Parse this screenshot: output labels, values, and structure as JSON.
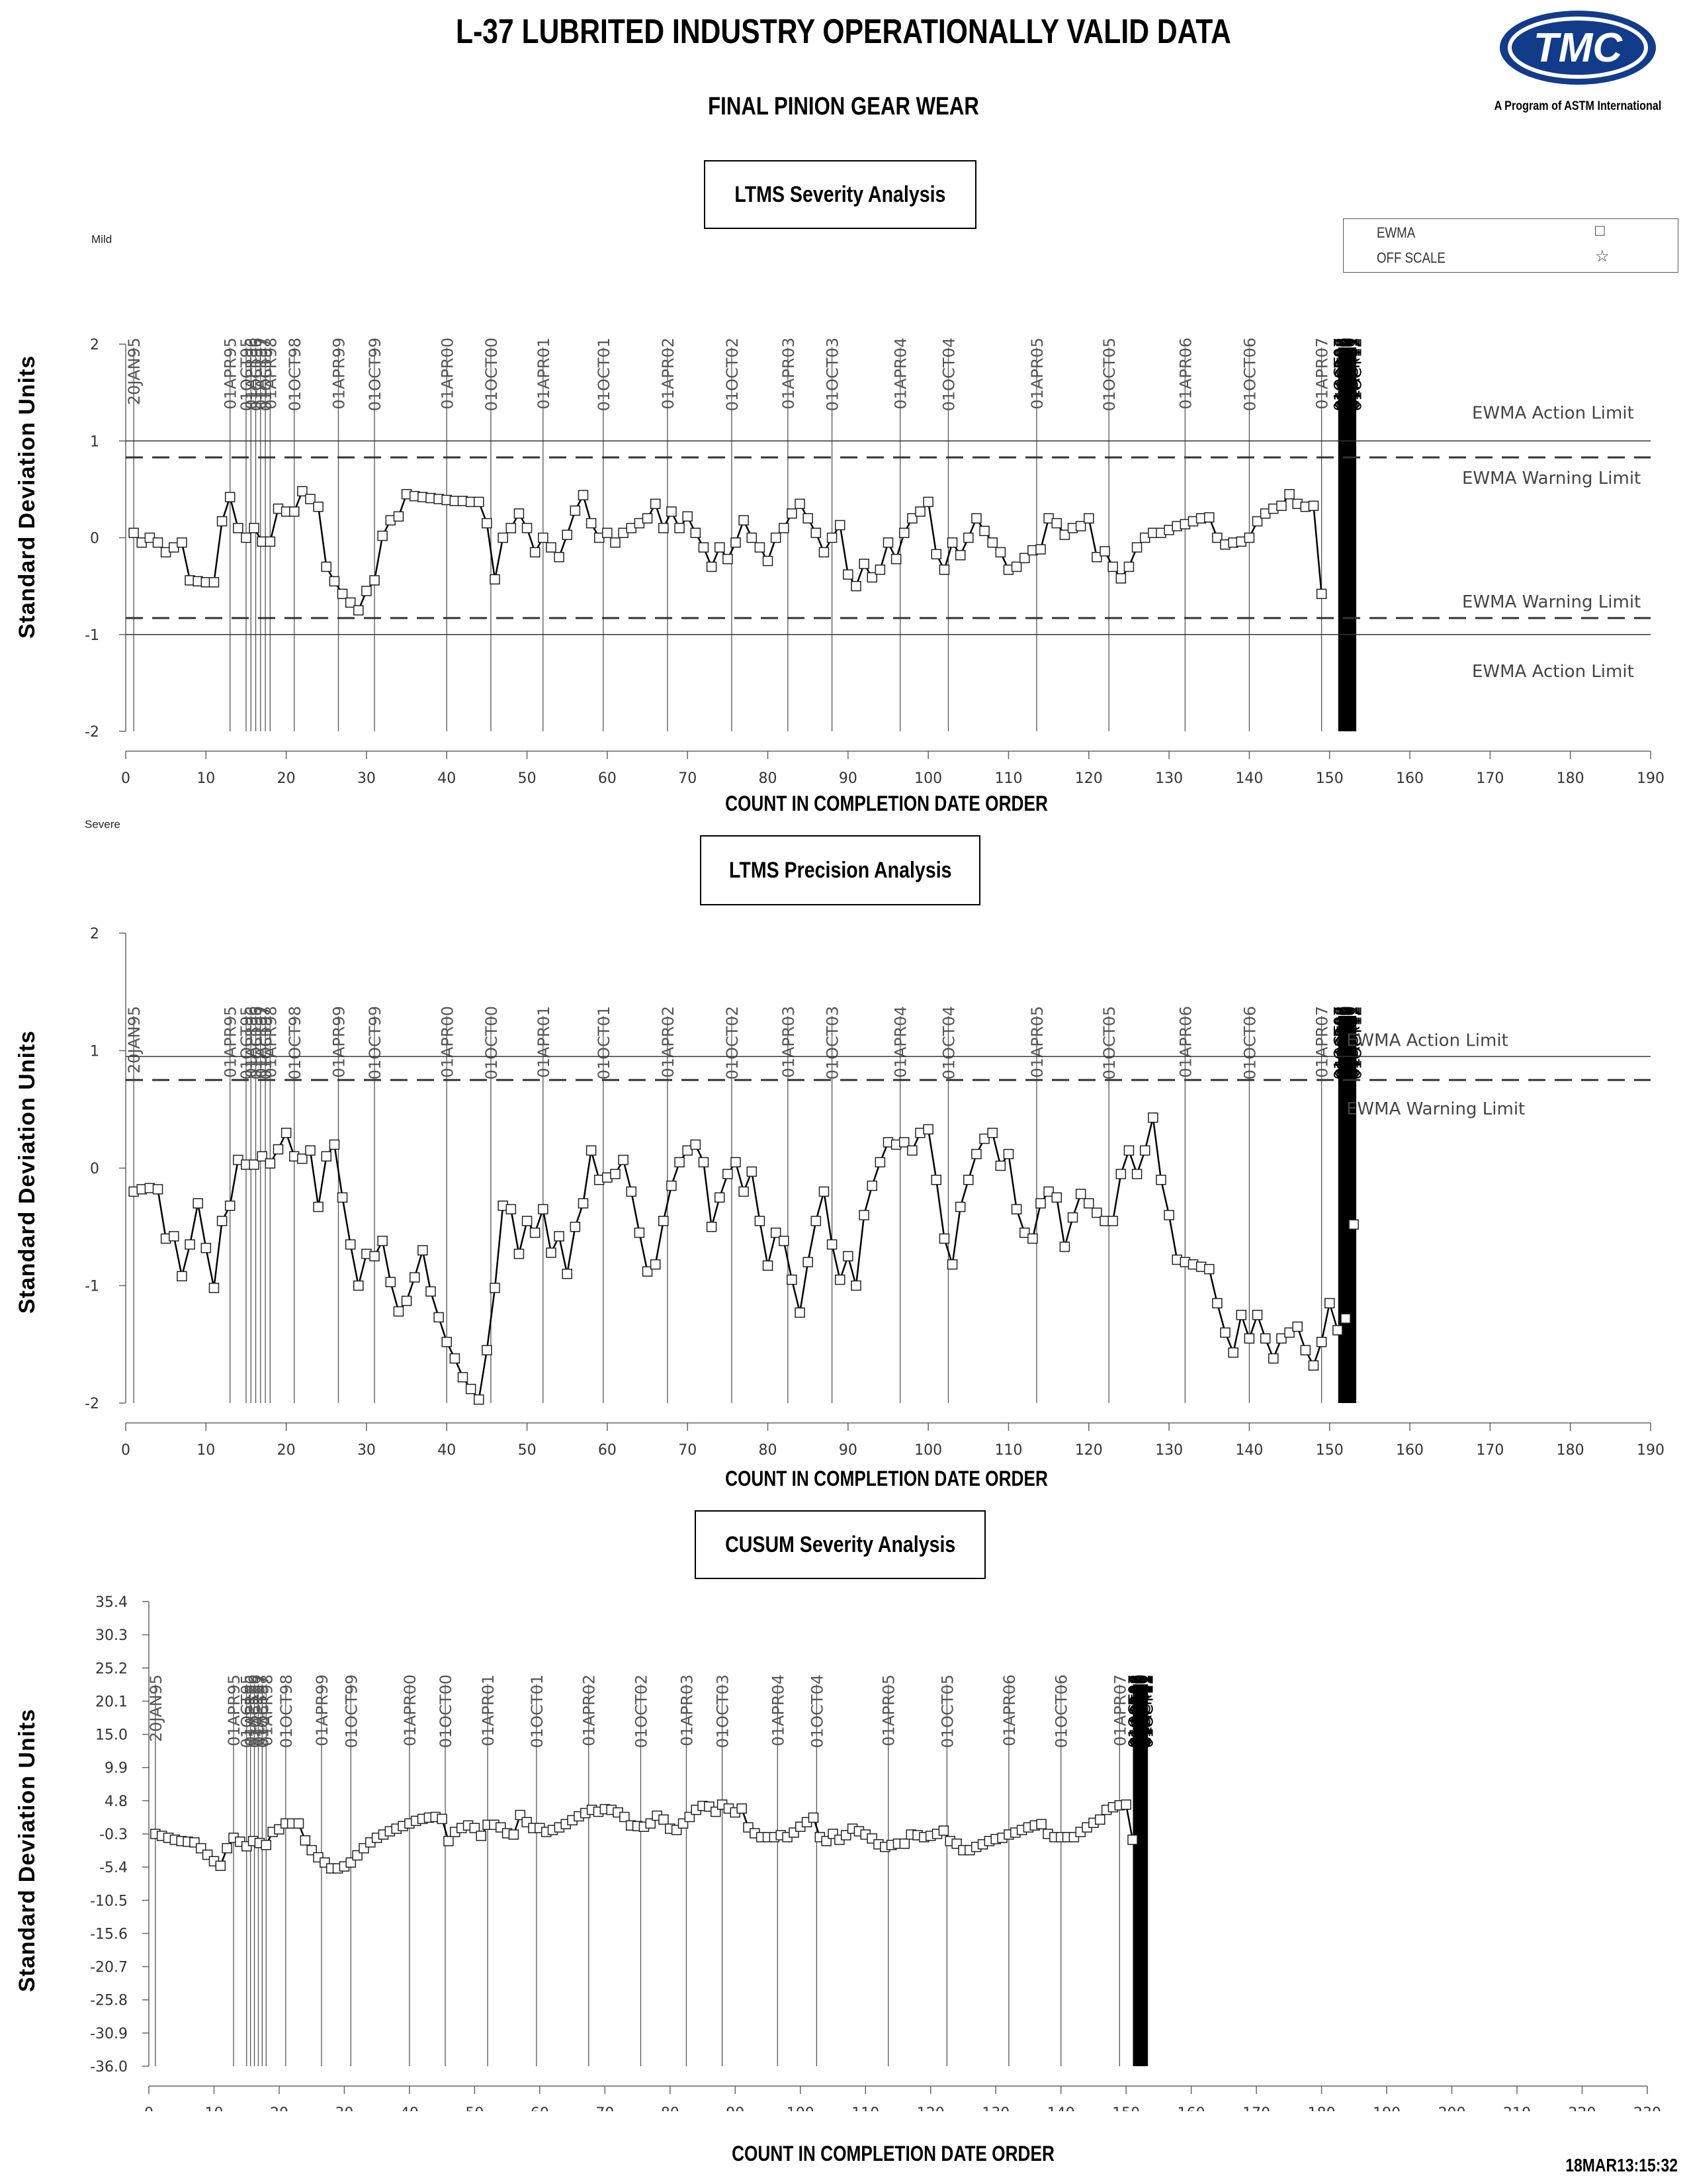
{
  "header": {
    "title": "L-37 LUBRITED INDUSTRY OPERATIONALLY VALID DATA",
    "subtitle": "FINAL PINION GEAR WEAR",
    "logo_text": "TMC",
    "logo_caption": "A Program of ASTM International"
  },
  "legend": {
    "items": [
      {
        "label": "EWMA",
        "symbol": "□"
      },
      {
        "label": "OFF SCALE",
        "symbol": "☆"
      }
    ]
  },
  "footer": {
    "stamp": "18MAR13:15:32"
  },
  "date_markers": {
    "dates": [
      "20JAN95",
      "01APR95",
      "01OCT95",
      "01APR96",
      "01OCT96",
      "01APR97",
      "01OCT97",
      "01APR98",
      "01OCT98",
      "01APR99",
      "01OCT99",
      "01APR00",
      "01OCT00",
      "01APR01",
      "01OCT01",
      "01APR02",
      "01OCT02",
      "01APR03",
      "01OCT03",
      "01APR04",
      "01OCT04",
      "01APR05",
      "01OCT05",
      "01APR06",
      "01OCT06",
      "01APR07",
      "01OCT07",
      "01APR08",
      "01OCT08",
      "01APR09",
      "01OCT09",
      "01APR10",
      "01OCT10",
      "01APR11",
      "01OCT11",
      "01APR12",
      "01OCT12"
    ],
    "counts": [
      1,
      13,
      15,
      15.6,
      16.2,
      16.8,
      17.4,
      18,
      21,
      26.5,
      31,
      40,
      45.5,
      52,
      59.5,
      67.5,
      75.5,
      82.5,
      88,
      96.5,
      102.5,
      113.5,
      122.5,
      132,
      140,
      149,
      151.2,
      151.4,
      151.6,
      151.8,
      152,
      152.2,
      152.4,
      152.6,
      152.8,
      153,
      153.2
    ]
  },
  "chart_data": [
    {
      "type": "line",
      "title": "LTMS Severity Analysis",
      "xlabel": "COUNT IN COMPLETION DATE ORDER",
      "ylabel": "Standard Deviation Units",
      "xlim": [
        0,
        190
      ],
      "ylim": [
        -2,
        2
      ],
      "xticks": [
        0,
        10,
        20,
        30,
        40,
        50,
        60,
        70,
        80,
        90,
        100,
        110,
        120,
        130,
        140,
        150,
        160,
        170,
        180,
        190
      ],
      "yticks": [
        -2,
        -1,
        0,
        1,
        2
      ],
      "corner_label": "Mild",
      "reference_lines": [
        {
          "label": "EWMA Action Limit",
          "value": 1.0,
          "style": "solid"
        },
        {
          "label": "EWMA Warning Limit",
          "value": 0.83,
          "style": "dashed"
        },
        {
          "label": "EWMA Warning Limit",
          "value": -0.83,
          "style": "dashed"
        },
        {
          "label": "EWMA Action Limit",
          "value": -1.0,
          "style": "solid"
        }
      ],
      "series": [
        {
          "name": "EWMA",
          "x_start": 1,
          "values": [
            0.05,
            -0.05,
            0.0,
            -0.05,
            -0.15,
            -0.1,
            -0.05,
            -0.44,
            -0.45,
            -0.46,
            -0.46,
            0.17,
            0.42,
            0.1,
            0.0,
            0.1,
            -0.04,
            -0.04,
            0.3,
            0.27,
            0.27,
            0.48,
            0.4,
            0.32,
            -0.3,
            -0.45,
            -0.58,
            -0.67,
            -0.75,
            -0.55,
            -0.44,
            0.02,
            0.18,
            0.22,
            0.45,
            0.43,
            0.42,
            0.41,
            0.4,
            0.39,
            0.38,
            0.38,
            0.37,
            0.37,
            0.15,
            -0.43,
            0.0,
            0.1,
            0.25,
            0.1,
            -0.15,
            0.0,
            -0.1,
            -0.2,
            0.03,
            0.28,
            0.44,
            0.15,
            0.0,
            0.05,
            -0.05,
            0.05,
            0.1,
            0.15,
            0.2,
            0.35,
            0.1,
            0.27,
            0.1,
            0.22,
            0.05,
            -0.1,
            -0.3,
            -0.1,
            -0.22,
            -0.05,
            0.18,
            0.0,
            -0.1,
            -0.24,
            0.0,
            0.1,
            0.25,
            0.35,
            0.2,
            0.05,
            -0.15,
            0.0,
            0.13,
            -0.38,
            -0.5,
            -0.27,
            -0.41,
            -0.33,
            -0.05,
            -0.22,
            0.05,
            0.2,
            0.27,
            0.37,
            -0.17,
            -0.33,
            -0.05,
            -0.18,
            0.0,
            0.2,
            0.07,
            -0.05,
            -0.15,
            -0.33,
            -0.3,
            -0.21,
            -0.13,
            -0.12,
            0.2,
            0.15,
            0.03,
            0.1,
            0.12,
            0.2,
            -0.2,
            -0.14,
            -0.3,
            -0.42,
            -0.3,
            -0.1,
            0.0,
            0.05,
            0.05,
            0.08,
            0.12,
            0.14,
            0.17,
            0.2,
            0.21,
            0.0,
            -0.07,
            -0.05,
            -0.04,
            0.0,
            0.17,
            0.25,
            0.3,
            0.33,
            0.45,
            0.35,
            0.32,
            0.33,
            -0.58
          ]
        }
      ]
    },
    {
      "type": "line",
      "title": "LTMS Precision Analysis",
      "xlabel": "COUNT IN COMPLETION DATE ORDER",
      "ylabel": "Standard Deviation Units",
      "xlim": [
        0,
        190
      ],
      "ylim": [
        -2,
        2
      ],
      "xticks": [
        0,
        10,
        20,
        30,
        40,
        50,
        60,
        70,
        80,
        90,
        100,
        110,
        120,
        130,
        140,
        150,
        160,
        170,
        180,
        190
      ],
      "yticks": [
        -2,
        -1,
        0,
        1,
        2
      ],
      "corner_label": "Severe",
      "reference_lines": [
        {
          "label": "EWMA Action Limit",
          "value": 0.95,
          "style": "solid"
        },
        {
          "label": "EWMA Warning Limit",
          "value": 0.75,
          "style": "dashed"
        }
      ],
      "series": [
        {
          "name": "EWMA",
          "x_start": 1,
          "values": [
            -0.2,
            -0.18,
            -0.17,
            -0.18,
            -0.6,
            -0.58,
            -0.92,
            -0.65,
            -0.3,
            -0.68,
            -1.02,
            -0.45,
            -0.32,
            0.07,
            0.03,
            0.03,
            0.1,
            0.04,
            0.16,
            0.3,
            0.1,
            0.08,
            0.15,
            -0.33,
            0.1,
            0.2,
            -0.25,
            -0.65,
            -1.0,
            -0.73,
            -0.75,
            -0.62,
            -0.97,
            -1.22,
            -1.13,
            -0.93,
            -0.7,
            -1.05,
            -1.27,
            -1.48,
            -1.62,
            -1.78,
            -1.88,
            -1.97,
            -1.55,
            -1.02,
            -0.32,
            -0.35,
            -0.73,
            -0.45,
            -0.55,
            -0.35,
            -0.72,
            -0.58,
            -0.9,
            -0.5,
            -0.3,
            0.15,
            -0.1,
            -0.08,
            -0.05,
            0.07,
            -0.2,
            -0.55,
            -0.88,
            -0.82,
            -0.45,
            -0.15,
            0.05,
            0.15,
            0.2,
            0.05,
            -0.5,
            -0.25,
            -0.05,
            0.05,
            -0.2,
            -0.03,
            -0.45,
            -0.83,
            -0.55,
            -0.62,
            -0.95,
            -1.23,
            -0.8,
            -0.45,
            -0.2,
            -0.65,
            -0.95,
            -0.75,
            -1.0,
            -0.4,
            -0.15,
            0.05,
            0.22,
            0.2,
            0.22,
            0.15,
            0.3,
            0.33,
            -0.1,
            -0.6,
            -0.82,
            -0.33,
            -0.1,
            0.12,
            0.25,
            0.3,
            0.02,
            0.12,
            -0.35,
            -0.55,
            -0.6,
            -0.3,
            -0.2,
            -0.25,
            -0.67,
            -0.42,
            -0.22,
            -0.3,
            -0.38,
            -0.45,
            -0.45,
            -0.05,
            0.15,
            -0.05,
            0.15,
            0.43,
            -0.1,
            -0.4,
            -0.78,
            -0.8,
            -0.82,
            -0.84,
            -0.86,
            -1.15,
            -1.4,
            -1.57,
            -1.25,
            -1.45,
            -1.25,
            -1.45,
            -1.62,
            -1.45,
            -1.4,
            -1.35,
            -1.55,
            -1.68,
            -1.48,
            -1.15,
            -1.38,
            -1.28,
            -0.48
          ]
        }
      ]
    },
    {
      "type": "line",
      "title": "CUSUM Severity Analysis",
      "xlabel": "COUNT IN COMPLETION DATE ORDER",
      "ylabel": "Standard Deviation Units",
      "xlim": [
        0,
        230
      ],
      "ylim": [
        -36.0,
        35.4
      ],
      "xticks": [
        0,
        10,
        20,
        30,
        40,
        50,
        60,
        70,
        80,
        90,
        100,
        110,
        120,
        130,
        140,
        150,
        160,
        170,
        180,
        190,
        200,
        210,
        220,
        230
      ],
      "yticks": [
        35.4,
        30.3,
        25.2,
        20.1,
        15.0,
        9.9,
        4.8,
        -0.3,
        -5.4,
        -10.5,
        -15.6,
        -20.7,
        -25.8,
        -30.9,
        -36.0
      ],
      "series": [
        {
          "name": "CUSUM",
          "x_start": 1,
          "values": [
            -0.3,
            -0.6,
            -0.9,
            -1.2,
            -1.4,
            -1.5,
            -1.6,
            -2.5,
            -3.5,
            -4.5,
            -5.2,
            -2.5,
            -0.9,
            -1.5,
            -2.2,
            -1.4,
            -1.7,
            -2.0,
            0.0,
            0.4,
            1.3,
            1.3,
            1.3,
            -1.3,
            -2.8,
            -3.9,
            -4.7,
            -5.6,
            -5.6,
            -5.3,
            -4.7,
            -3.6,
            -2.5,
            -1.6,
            -0.9,
            -0.4,
            0.1,
            0.5,
            0.9,
            1.3,
            1.7,
            2.0,
            2.2,
            2.3,
            2.0,
            -1.4,
            0.0,
            0.6,
            1.0,
            0.6,
            -0.6,
            1.1,
            1.1,
            0.7,
            -0.2,
            -0.4,
            2.6,
            1.5,
            0.6,
            0.6,
            0.0,
            0.3,
            0.7,
            1.2,
            1.8,
            2.4,
            2.9,
            3.4,
            3.1,
            3.5,
            3.4,
            3.0,
            2.3,
            1.0,
            0.9,
            0.8,
            1.3,
            2.5,
            1.9,
            0.5,
            0.3,
            1.3,
            2.3,
            3.4,
            4.0,
            3.9,
            3.1,
            4.2,
            3.6,
            3.0,
            3.6,
            0.7,
            -0.2,
            -0.8,
            -0.8,
            -0.8,
            -0.5,
            -0.8,
            -0.1,
            0.8,
            1.5,
            2.2,
            -0.8,
            -1.4,
            -0.3,
            -1.2,
            -0.5,
            0.5,
            0.1,
            -0.4,
            -1.0,
            -1.9,
            -2.3,
            -2.0,
            -1.8,
            -1.8,
            -0.4,
            -0.5,
            -0.8,
            -0.6,
            -0.3,
            0.2,
            -1.4,
            -1.8,
            -2.8,
            -2.8,
            -2.3,
            -1.9,
            -1.4,
            -1.1,
            -0.9,
            -0.4,
            -0.1,
            0.3,
            0.7,
            1.0,
            1.2,
            -0.3,
            -0.8,
            -0.8,
            -0.8,
            -0.8,
            0.0,
            0.7,
            1.4,
            1.9,
            3.4,
            3.8,
            4.1,
            4.2,
            -1.2
          ]
        }
      ]
    }
  ]
}
